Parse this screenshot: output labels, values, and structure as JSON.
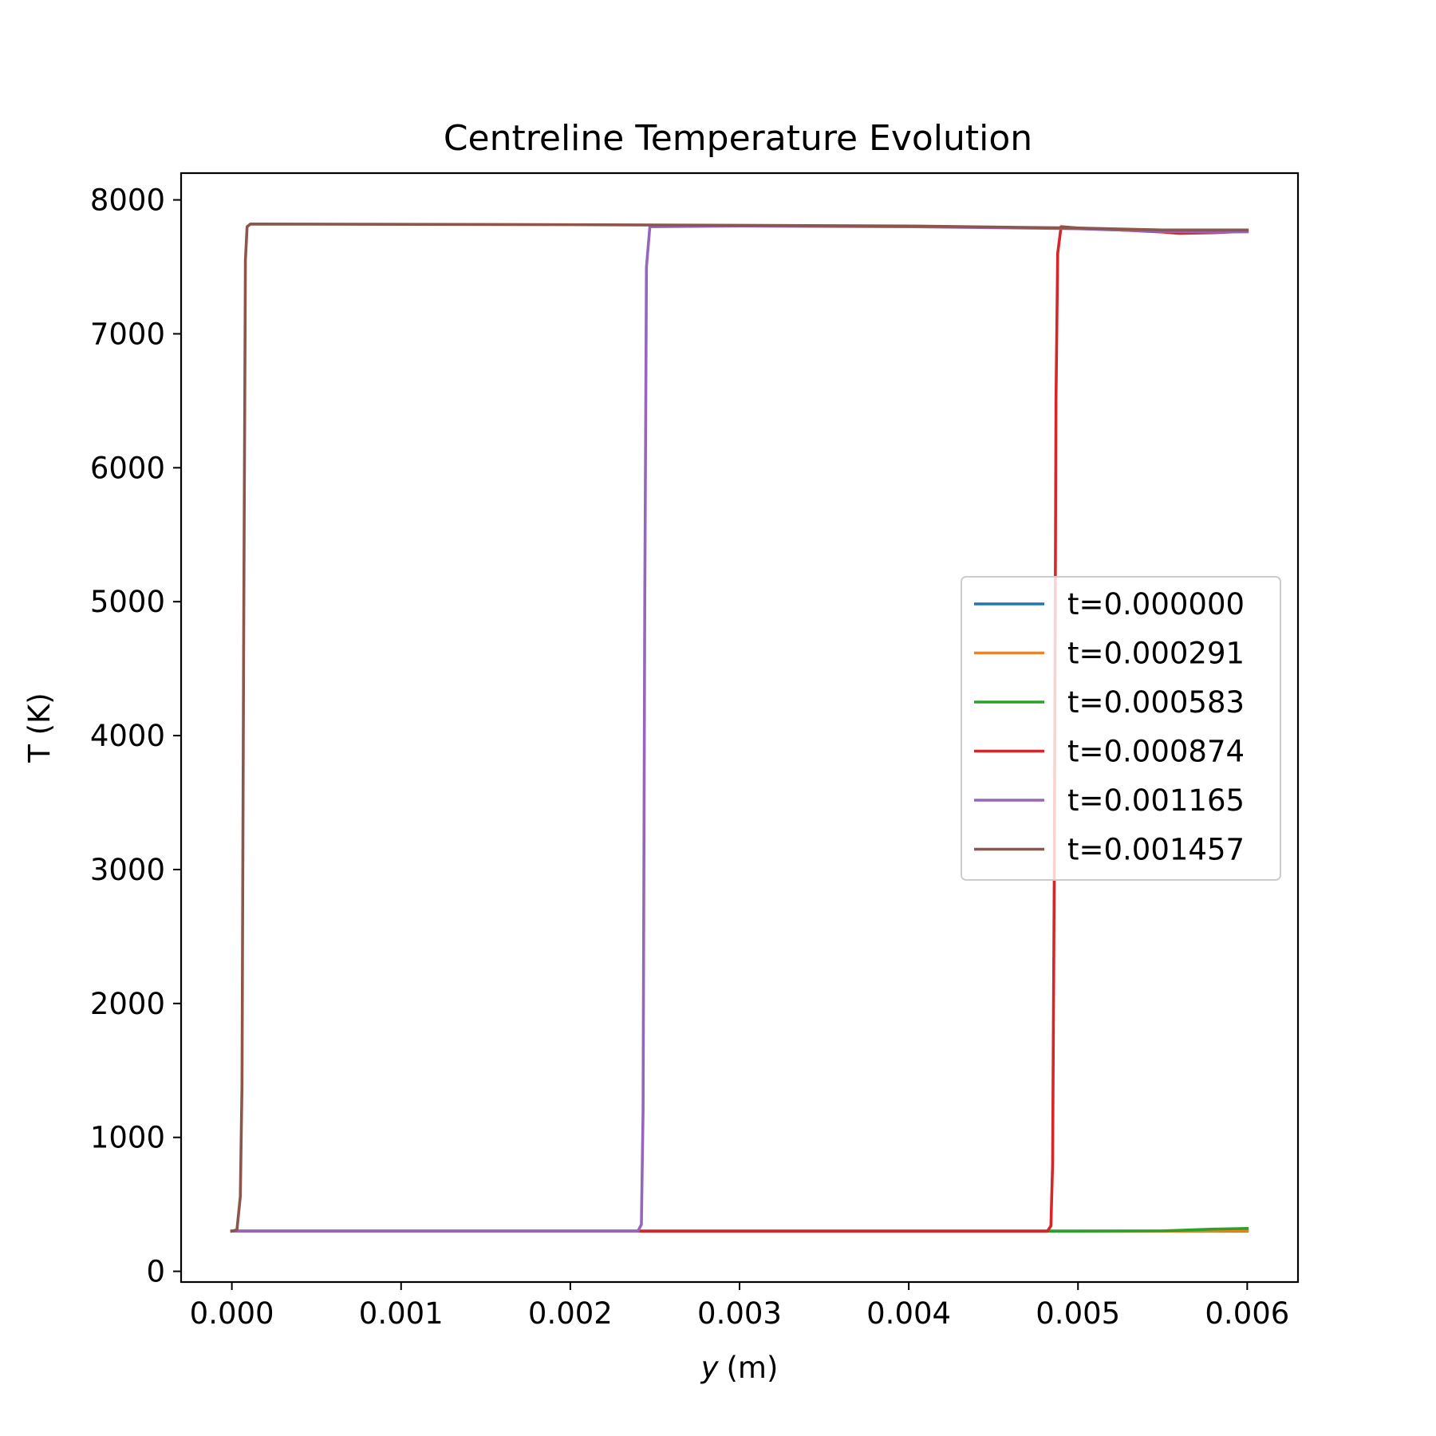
{
  "chart_data": {
    "type": "line",
    "title": "Centreline Temperature Evolution",
    "xlabel_var": "y",
    "xlabel_unit": "(m)",
    "ylabel": "T (K)",
    "xlim": [
      -0.0003,
      0.0063
    ],
    "ylim": [
      -80,
      8200
    ],
    "xticks": [
      0.0,
      0.001,
      0.002,
      0.003,
      0.004,
      0.005,
      0.006
    ],
    "xtick_labels": [
      "0.000",
      "0.001",
      "0.002",
      "0.003",
      "0.004",
      "0.005",
      "0.006"
    ],
    "yticks": [
      0,
      1000,
      2000,
      3000,
      4000,
      5000,
      6000,
      7000,
      8000
    ],
    "ytick_labels": [
      "0",
      "1000",
      "2000",
      "3000",
      "4000",
      "5000",
      "6000",
      "7000",
      "8000"
    ],
    "grid": false,
    "legend_position": "center-right",
    "series": [
      {
        "name": "t=0.000000",
        "color": "#1f77b4",
        "points": [
          [
            0.0,
            300
          ],
          [
            0.006,
            300
          ]
        ]
      },
      {
        "name": "t=0.000291",
        "color": "#ff7f0e",
        "points": [
          [
            0.0,
            300
          ],
          [
            0.0055,
            300
          ],
          [
            0.006,
            302
          ]
        ]
      },
      {
        "name": "t=0.000583",
        "color": "#2ca02c",
        "points": [
          [
            0.0,
            300
          ],
          [
            0.005,
            300
          ],
          [
            0.0055,
            302
          ],
          [
            0.0058,
            315
          ],
          [
            0.006,
            320
          ]
        ]
      },
      {
        "name": "t=0.000874",
        "color": "#d62728",
        "points": [
          [
            0.0,
            300
          ],
          [
            0.00482,
            300
          ],
          [
            0.00484,
            340
          ],
          [
            0.00485,
            800
          ],
          [
            0.00486,
            3000
          ],
          [
            0.00487,
            6500
          ],
          [
            0.00488,
            7600
          ],
          [
            0.0049,
            7800
          ],
          [
            0.005,
            7790
          ],
          [
            0.0055,
            7760
          ],
          [
            0.0056,
            7750
          ],
          [
            0.0058,
            7755
          ],
          [
            0.006,
            7765
          ]
        ]
      },
      {
        "name": "t=0.001165",
        "color": "#9467bd",
        "points": [
          [
            0.0,
            300
          ],
          [
            0.0024,
            300
          ],
          [
            0.00242,
            350
          ],
          [
            0.00243,
            1200
          ],
          [
            0.00244,
            5000
          ],
          [
            0.00245,
            7500
          ],
          [
            0.00247,
            7800
          ],
          [
            0.003,
            7805
          ],
          [
            0.004,
            7800
          ],
          [
            0.005,
            7785
          ],
          [
            0.0055,
            7765
          ],
          [
            0.0058,
            7760
          ],
          [
            0.006,
            7762
          ]
        ]
      },
      {
        "name": "t=0.001457",
        "color": "#8c564b",
        "points": [
          [
            0.0,
            300
          ],
          [
            3e-05,
            310
          ],
          [
            5e-05,
            560
          ],
          [
            6e-05,
            1400
          ],
          [
            7e-05,
            4800
          ],
          [
            8e-05,
            7550
          ],
          [
            9e-05,
            7800
          ],
          [
            0.00011,
            7820
          ],
          [
            0.002,
            7815
          ],
          [
            0.003,
            7810
          ],
          [
            0.004,
            7805
          ],
          [
            0.005,
            7790
          ],
          [
            0.0055,
            7775
          ],
          [
            0.006,
            7775
          ]
        ]
      }
    ]
  }
}
